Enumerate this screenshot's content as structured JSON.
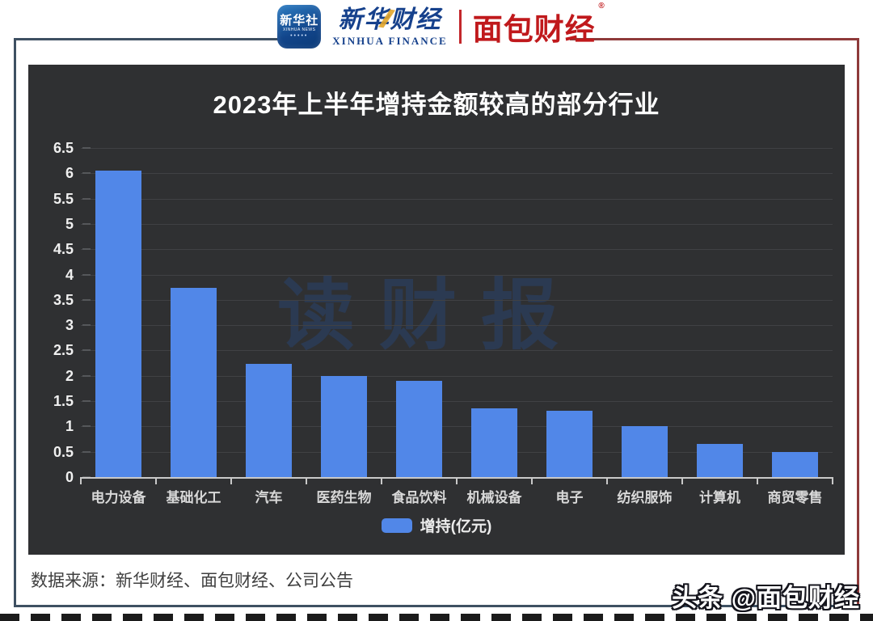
{
  "header": {
    "xinhua_icon_line1": "新华社",
    "xinhua_icon_line2": "XINHUA NEWS",
    "xinhua_icon_dots": "•••••",
    "xinhua_wordmark_cn": "新华财经",
    "xinhua_wordmark_en": "XINHUA FINANCE",
    "mianbao_logo": "面包财经",
    "registered_mark": "®"
  },
  "chart_data": {
    "type": "bar",
    "title": "2023年上半年增持金额较高的部分行业",
    "categories": [
      "电力设备",
      "基础化工",
      "汽车",
      "医药生物",
      "食品饮料",
      "机械设备",
      "电子",
      "纺织服饰",
      "计算机",
      "商贸零售"
    ],
    "values": [
      6.05,
      3.73,
      2.24,
      2.0,
      1.9,
      1.35,
      1.31,
      1.01,
      0.66,
      0.5
    ],
    "ylim": [
      0,
      6.5
    ],
    "ytick_labels": [
      "0",
      "0.5",
      "1",
      "1.5",
      "2",
      "2.5",
      "3",
      "3.5",
      "4",
      "4.5",
      "5",
      "5.5",
      "6",
      "6.5"
    ],
    "ytick_values": [
      0,
      0.5,
      1,
      1.5,
      2,
      2.5,
      3,
      3.5,
      4,
      4.5,
      5,
      5.5,
      6,
      6.5
    ],
    "grid": true,
    "legend_position": "bottom",
    "legend_label": "增持(亿元)",
    "bar_color": "#5187e8",
    "background_color": "#2f3032",
    "watermark": "读财报"
  },
  "footer": {
    "source": "数据来源：新华财经、面包财经、公司公告",
    "toutiao_watermark": "头条 @面包财经"
  },
  "colors": {
    "frame_slate": "#3e5062",
    "frame_red": "#8e3a3a",
    "brand_blue": "#16418c",
    "brand_red": "#c0191c"
  }
}
